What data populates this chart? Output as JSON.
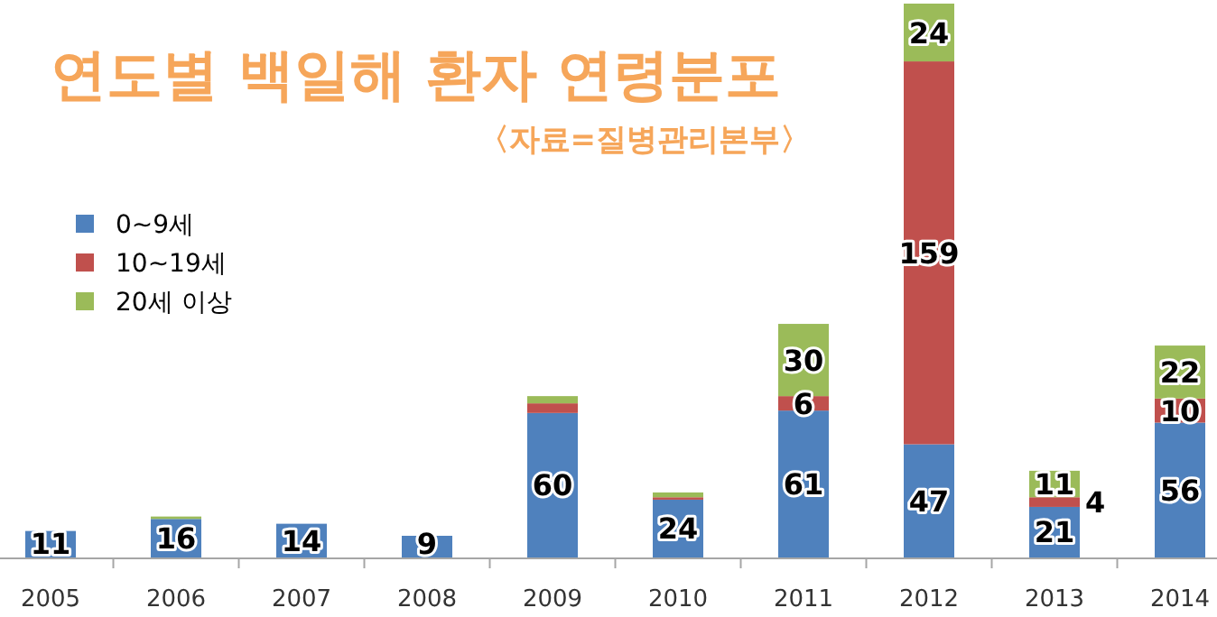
{
  "chart_data": {
    "type": "bar",
    "stacked": true,
    "title": "연도별 백일해 환자 연령분포",
    "subtitle": "〈자료=질병관리본부〉",
    "categories": [
      "2005",
      "2006",
      "2007",
      "2008",
      "2009",
      "2010",
      "2011",
      "2012",
      "2013",
      "2014"
    ],
    "series": [
      {
        "name": "0~9세",
        "color": "#4f81bd",
        "values": [
          11,
          16,
          14,
          9,
          60,
          24,
          61,
          47,
          21,
          56
        ],
        "value_labels": [
          "11",
          "16",
          "14",
          "9",
          "60",
          "24",
          "61",
          "47",
          "21",
          "56"
        ]
      },
      {
        "name": "10~19세",
        "color": "#c0504d",
        "values": [
          0,
          0,
          0,
          0,
          4,
          1,
          6,
          159,
          4,
          10
        ],
        "value_labels": [
          null,
          null,
          null,
          null,
          null,
          null,
          "6",
          "159",
          "4",
          "10"
        ]
      },
      {
        "name": "20세 이상",
        "color": "#9bbb59",
        "values": [
          0,
          1,
          0,
          0,
          3,
          2,
          30,
          24,
          11,
          22
        ],
        "value_labels": [
          null,
          null,
          null,
          null,
          null,
          null,
          "30",
          "24",
          "11",
          "22"
        ]
      }
    ],
    "legend": "top left"
  }
}
